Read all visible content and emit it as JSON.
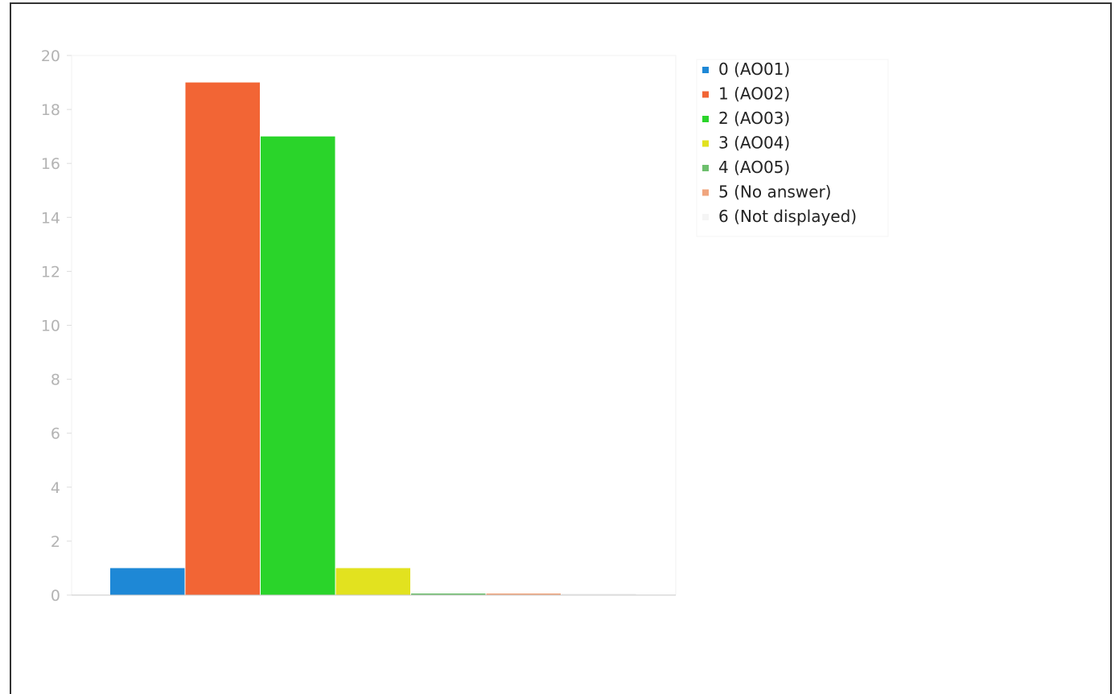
{
  "chart_data": {
    "type": "bar",
    "categories": [
      "0 (AO01)",
      "1 (AO02)",
      "2 (AO03)",
      "3 (AO04)",
      "4 (AO05)",
      "5 (No answer)",
      "6 (Not displayed)"
    ],
    "values": [
      1,
      19,
      17,
      1,
      0,
      0,
      0
    ],
    "colors": [
      "#1e88d6",
      "#f26535",
      "#2ad42a",
      "#e2e21f",
      "#6dbf6d",
      "#f0a57e",
      "#f5f5f5"
    ],
    "title": "",
    "xlabel": "",
    "ylabel": "",
    "ylim": [
      0,
      20
    ],
    "yticks": [
      0,
      2,
      4,
      6,
      8,
      10,
      12,
      14,
      16,
      18,
      20
    ],
    "grid": false,
    "legend": {
      "position": "right",
      "entries": [
        "0 (AO01)",
        "1 (AO02)",
        "2 (AO03)",
        "3 (AO04)",
        "4 (AO05)",
        "5 (No answer)",
        "6 (Not displayed)"
      ]
    }
  }
}
